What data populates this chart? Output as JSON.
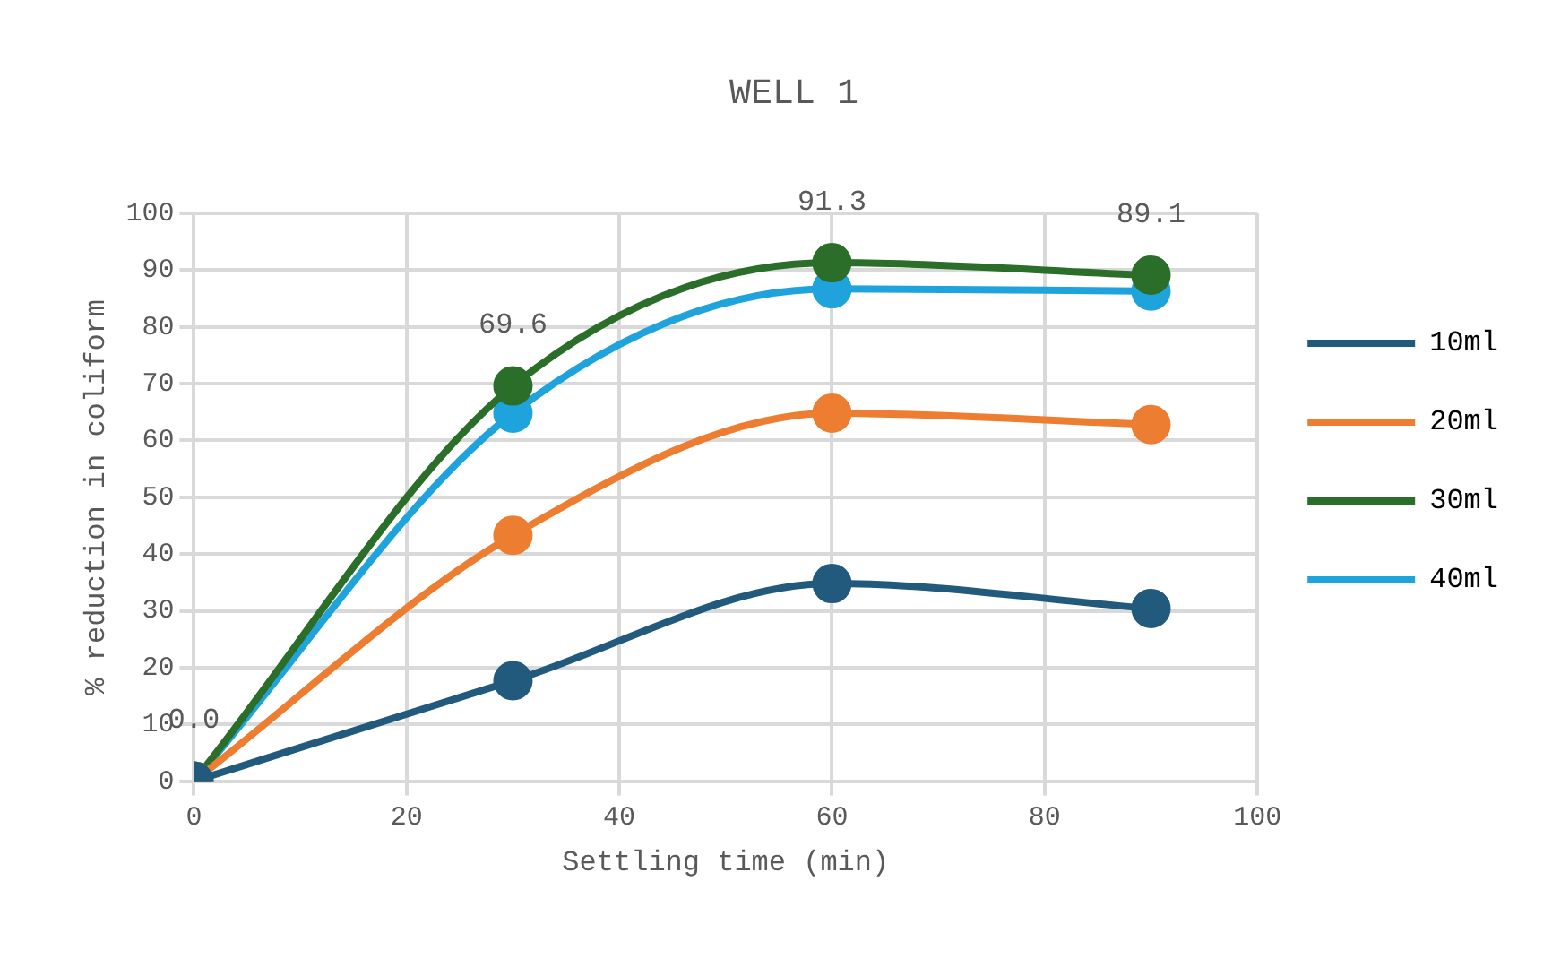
{
  "chart_data": {
    "type": "line",
    "title": "WELL 1",
    "xlabel": "Settling time (min)",
    "ylabel": "% reduction in coliform",
    "x": [
      0,
      30,
      60,
      90
    ],
    "series": [
      {
        "name": "10ml",
        "color": "#215a7d",
        "values": [
          0,
          17.7,
          34.8,
          30.4
        ]
      },
      {
        "name": "20ml",
        "color": "#ed7d31",
        "values": [
          0,
          43.3,
          64.8,
          62.8
        ]
      },
      {
        "name": "30ml",
        "color": "#2a6e2a",
        "values": [
          0,
          69.6,
          91.3,
          89.1
        ],
        "value_labels": [
          "0.0",
          "69.6",
          "91.3",
          "89.1"
        ]
      },
      {
        "name": "40ml",
        "color": "#1ea3dc",
        "values": [
          0,
          64.8,
          86.7,
          86.3
        ]
      }
    ],
    "xlim": [
      0,
      100
    ],
    "xticks": [
      0,
      20,
      40,
      60,
      80,
      100
    ],
    "ylim": [
      0,
      100
    ],
    "yticks": [
      0,
      10,
      20,
      30,
      40,
      50,
      60,
      70,
      80,
      90,
      100
    ],
    "grid": true,
    "legend": "right",
    "marker": "circle",
    "line_style": "solid"
  }
}
